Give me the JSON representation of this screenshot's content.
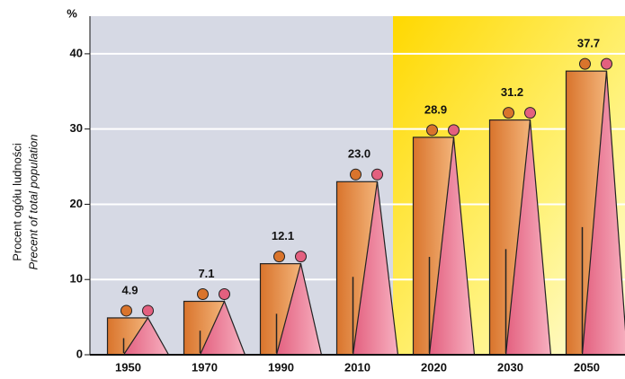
{
  "chart_data": {
    "type": "pictogram-bar",
    "y_axis_title": [
      "Procent ogółu ludności",
      "Precent of total population"
    ],
    "y_unit": "%",
    "categories": [
      "1950",
      "1970",
      "1990",
      "2010",
      "2020",
      "2030",
      "2050"
    ],
    "values": [
      4.9,
      7.1,
      12.1,
      23.0,
      28.9,
      31.2,
      37.7
    ],
    "value_labels": [
      "4.9",
      "7.1",
      "12.1",
      "23.0",
      "28.9",
      "31.2",
      "37.7"
    ],
    "color": "#d9742c",
    "figure_color": "#e3607f",
    "ylim": [
      0,
      45
    ],
    "yticks": [
      0,
      10,
      20,
      30,
      40
    ],
    "grid": true
  }
}
